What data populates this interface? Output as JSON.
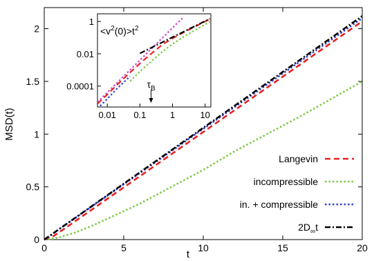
{
  "chart_data": [
    {
      "type": "line",
      "xlabel": "t",
      "ylabel": "MSD(t)",
      "xlim": [
        0,
        20
      ],
      "ylim": [
        0,
        2.2
      ],
      "xticks": [
        "0",
        "5",
        "10",
        "15",
        "20"
      ],
      "yticks": [
        "0",
        "0.5",
        "1",
        "1.5",
        "2"
      ],
      "grid": false,
      "legend_position": "bottom-right",
      "series": [
        {
          "name": "Langevin",
          "color": "#e8201e",
          "dash": "dashed",
          "x": [
            0,
            0.5,
            1,
            2,
            3,
            4,
            5,
            6,
            8,
            10,
            12,
            14,
            16,
            18,
            20
          ],
          "y": [
            0,
            0.025,
            0.075,
            0.18,
            0.285,
            0.39,
            0.495,
            0.6,
            0.81,
            1.02,
            1.23,
            1.44,
            1.65,
            1.86,
            2.07
          ]
        },
        {
          "name": "incompressible",
          "color": "#7ac943",
          "dash": "dotted",
          "x": [
            0,
            0.5,
            1,
            2,
            3,
            4,
            5,
            6,
            8,
            10,
            12,
            14,
            16,
            18,
            20
          ],
          "y": [
            0,
            0.007,
            0.023,
            0.07,
            0.13,
            0.2,
            0.27,
            0.34,
            0.5,
            0.66,
            0.84,
            1.0,
            1.16,
            1.33,
            1.5
          ]
        },
        {
          "name": "in. + compressible",
          "color": "#2b3fcf",
          "dash": "dotted",
          "x": [
            0,
            0.5,
            1,
            2,
            3,
            4,
            5,
            6,
            8,
            10,
            12,
            14,
            16,
            18,
            20
          ],
          "y": [
            0,
            0.05,
            0.105,
            0.21,
            0.315,
            0.42,
            0.525,
            0.63,
            0.84,
            1.05,
            1.26,
            1.47,
            1.68,
            1.89,
            2.1
          ]
        },
        {
          "name": "2D∞t",
          "color": "#000000",
          "dash": "dashdot",
          "x": [
            0,
            20
          ],
          "y": [
            0,
            2.12
          ]
        }
      ]
    },
    {
      "type": "line",
      "inset": true,
      "xscale": "log",
      "yscale": "log",
      "xlim": [
        0.005,
        15
      ],
      "ylim": [
        5e-06,
        3
      ],
      "xticks": [
        "0.01",
        "0.1",
        "1",
        "10"
      ],
      "yticks": [
        "0.0001",
        "0.01",
        "1"
      ],
      "annotations": {
        "ballistic_label": "<v²(0)>t²",
        "tau_label": "τB",
        "tau_value": 0.22
      },
      "series": [
        {
          "name": "<v²(0)>t²",
          "color": "#cc44cc",
          "dash": "dotted",
          "x": [
            0.005,
            0.01,
            0.02,
            0.05,
            0.1,
            0.2,
            0.5,
            1,
            2
          ],
          "y": [
            1e-05,
            4e-05,
            0.00016,
            0.001,
            0.004,
            0.016,
            0.1,
            0.4,
            1.6
          ]
        },
        {
          "name": "Langevin",
          "color": "#e8201e",
          "dash": "dashed",
          "x": [
            0.005,
            0.01,
            0.02,
            0.05,
            0.1,
            0.2,
            0.5,
            1,
            2,
            5,
            10,
            14
          ],
          "y": [
            8e-06,
            3e-05,
            0.00012,
            0.0007,
            0.0025,
            0.0085,
            0.038,
            0.09,
            0.19,
            0.5,
            1.0,
            1.45
          ]
        },
        {
          "name": "incompressible",
          "color": "#7ac943",
          "dash": "dotted",
          "x": [
            0.05,
            0.1,
            0.2,
            0.5,
            1,
            2,
            5,
            10,
            14
          ],
          "y": [
            0.0002,
            0.0008,
            0.0028,
            0.014,
            0.04,
            0.1,
            0.3,
            0.66,
            1.0
          ]
        },
        {
          "name": "in. + compressible",
          "color": "#2b3fcf",
          "dash": "dotted",
          "x": [
            0.005,
            0.01,
            0.02,
            0.05
          ],
          "y": [
            4e-06,
            1.6e-05,
            7e-05,
            0.0004
          ]
        },
        {
          "name": "2D∞t",
          "color": "#000000",
          "dash": "dashdot",
          "x": [
            0.1,
            1,
            10,
            14
          ],
          "y": [
            0.0106,
            0.106,
            1.06,
            1.48
          ]
        }
      ]
    }
  ]
}
